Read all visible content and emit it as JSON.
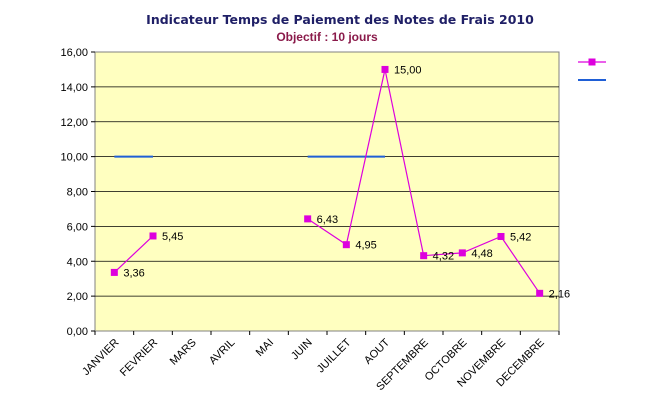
{
  "colors": {
    "plot_bg": "#ffffc0",
    "actual": "#dd00dd",
    "objective": "#1f5fd6",
    "grid": "#000000"
  },
  "chart_data": {
    "type": "line",
    "title": "Indicateur Temps de Paiement des Notes de Frais 2010",
    "subtitle": "Objectif : 10 jours",
    "ylabel": "",
    "xlabel": "",
    "ylim": [
      0,
      16
    ],
    "yticks": [
      "0,00",
      "2,00",
      "4,00",
      "6,00",
      "8,00",
      "10,00",
      "12,00",
      "14,00",
      "16,00"
    ],
    "grid": true,
    "legend": "top-right",
    "categories": [
      "JANVIER",
      "FEVRIER",
      "MARS",
      "AVRIL",
      "MAI",
      "JUIN",
      "JUILLET",
      "AOUT",
      "SEPTEMBRE",
      "OCTOBRE",
      "NOVEMBRE",
      "DECEMBRE"
    ],
    "series": [
      {
        "key": "actual",
        "values": [
          3.36,
          5.45,
          null,
          null,
          null,
          6.43,
          4.95,
          15.0,
          4.32,
          4.48,
          5.42,
          2.16
        ],
        "labels": [
          "3,36",
          "5,45",
          "",
          "",
          "",
          "6,43",
          "4,95",
          "15,00",
          "4,32",
          "4,48",
          "5,42",
          "2,16"
        ]
      },
      {
        "key": "objective",
        "values": [
          10,
          10,
          null,
          null,
          null,
          10,
          10,
          10,
          null,
          null,
          null,
          null
        ]
      }
    ]
  }
}
